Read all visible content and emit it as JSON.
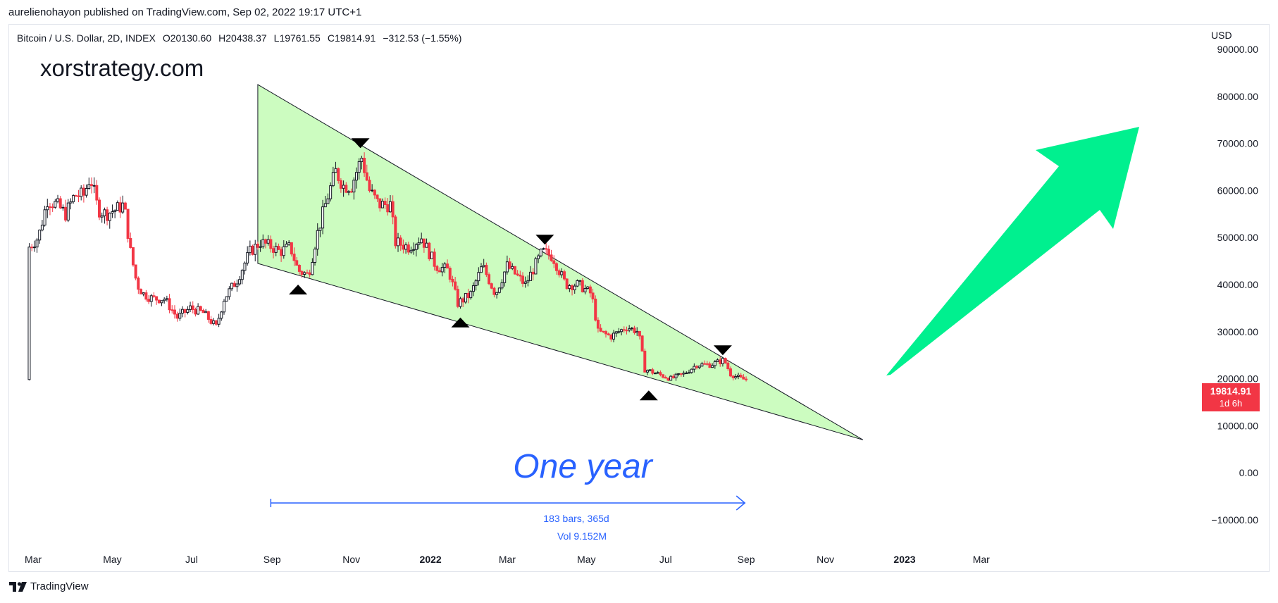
{
  "header": {
    "published_line": "aurelienohayon published on TradingView.com, Sep 02, 2022 19:17 UTC+1"
  },
  "symbol": {
    "name": "Bitcoin / U.S. Dollar, 2D, INDEX",
    "open": "O20130.60",
    "high": "H20438.37",
    "low": "L19761.55",
    "close": "C19814.91",
    "change": "−312.53 (−1.55%)"
  },
  "watermark": "xorstrategy.com",
  "price_axis": {
    "currency": "USD",
    "labels": [
      "90000.00",
      "80000.00",
      "70000.00",
      "60000.00",
      "50000.00",
      "40000.00",
      "30000.00",
      "20000.00",
      "10000.00",
      "0.00",
      "−10000.00"
    ]
  },
  "last_price": {
    "value": "19814.91",
    "countdown": "1d 6h",
    "color": "#f23645"
  },
  "annotations": {
    "title": "One year",
    "range_bars": "183 bars, 365d",
    "range_vol": "Vol 9.152M"
  },
  "footer": {
    "brand": "TradingView"
  },
  "colors": {
    "wedge_fill": "#ccfcc0",
    "arrow": "#00f08f",
    "up_candle": "#131722",
    "down_candle": "#f23645",
    "measure": "#2962ff"
  },
  "chart_data": {
    "type": "candlestick",
    "title": "Bitcoin / U.S. Dollar, 2D, INDEX",
    "xlabel": "",
    "ylabel": "USD",
    "ylim": [
      -10000,
      90000
    ],
    "x_ticks": [
      "Mar",
      "May",
      "Jul",
      "Sep",
      "Nov",
      "2022",
      "Mar",
      "May",
      "Jul",
      "Sep",
      "Nov",
      "2023",
      "Mar"
    ],
    "x_tick_dates": [
      "2021-03-01",
      "2021-05-01",
      "2021-07-01",
      "2021-09-01",
      "2021-11-01",
      "2022-01-01",
      "2022-03-01",
      "2022-05-01",
      "2022-07-01",
      "2022-09-01",
      "2022-11-01",
      "2023-01-01",
      "2023-03-01"
    ],
    "grid": false,
    "series": [
      {
        "name": "BTCUSD",
        "points": [
          [
            "2021-02-26",
            48000
          ],
          [
            "2021-03-05",
            50000
          ],
          [
            "2021-03-12",
            58000
          ],
          [
            "2021-03-19",
            57000
          ],
          [
            "2021-03-26",
            55000
          ],
          [
            "2021-04-02",
            59000
          ],
          [
            "2021-04-09",
            59000
          ],
          [
            "2021-04-14",
            63000
          ],
          [
            "2021-04-20",
            56000
          ],
          [
            "2021-04-26",
            55000
          ],
          [
            "2021-05-04",
            56000
          ],
          [
            "2021-05-10",
            57000
          ],
          [
            "2021-05-15",
            47000
          ],
          [
            "2021-05-20",
            40000
          ],
          [
            "2021-05-25",
            38000
          ],
          [
            "2021-06-01",
            37000
          ],
          [
            "2021-06-10",
            37000
          ],
          [
            "2021-06-20",
            33000
          ],
          [
            "2021-06-30",
            35000
          ],
          [
            "2021-07-10",
            34000
          ],
          [
            "2021-07-20",
            31000
          ],
          [
            "2021-07-26",
            37000
          ],
          [
            "2021-08-05",
            41000
          ],
          [
            "2021-08-15",
            47000
          ],
          [
            "2021-08-23",
            49000
          ],
          [
            "2021-09-01",
            48000
          ],
          [
            "2021-09-07",
            47000
          ],
          [
            "2021-09-15",
            48000
          ],
          [
            "2021-09-21",
            43000
          ],
          [
            "2021-09-29",
            42000
          ],
          [
            "2021-10-05",
            50000
          ],
          [
            "2021-10-13",
            58000
          ],
          [
            "2021-10-20",
            64000
          ],
          [
            "2021-10-26",
            61000
          ],
          [
            "2021-11-01",
            61000
          ],
          [
            "2021-11-09",
            67000
          ],
          [
            "2021-11-15",
            60000
          ],
          [
            "2021-11-22",
            57000
          ],
          [
            "2021-12-01",
            57000
          ],
          [
            "2021-12-05",
            49000
          ],
          [
            "2021-12-15",
            48000
          ],
          [
            "2021-12-25",
            50000
          ],
          [
            "2022-01-05",
            44000
          ],
          [
            "2022-01-15",
            43000
          ],
          [
            "2022-01-22",
            36000
          ],
          [
            "2022-02-01",
            38000
          ],
          [
            "2022-02-10",
            44000
          ],
          [
            "2022-02-20",
            38000
          ],
          [
            "2022-03-01",
            44000
          ],
          [
            "2022-03-15",
            40000
          ],
          [
            "2022-03-28",
            47000
          ],
          [
            "2022-04-05",
            46000
          ],
          [
            "2022-04-15",
            40000
          ],
          [
            "2022-04-25",
            40000
          ],
          [
            "2022-05-05",
            38000
          ],
          [
            "2022-05-10",
            30000
          ],
          [
            "2022-05-20",
            29000
          ],
          [
            "2022-06-01",
            31000
          ],
          [
            "2022-06-10",
            30000
          ],
          [
            "2022-06-15",
            22000
          ],
          [
            "2022-06-25",
            21000
          ],
          [
            "2022-07-05",
            20000
          ],
          [
            "2022-07-15",
            21000
          ],
          [
            "2022-07-25",
            23000
          ],
          [
            "2022-08-05",
            23000
          ],
          [
            "2022-08-15",
            24000
          ],
          [
            "2022-08-20",
            21000
          ],
          [
            "2022-08-28",
            20000
          ],
          [
            "2022-09-01",
            19814.91
          ]
        ]
      }
    ],
    "markers": {
      "top_arrows": [
        [
          "2021-11-08",
          69000
        ],
        [
          "2022-03-30",
          48500
        ],
        [
          "2022-08-14",
          25000
        ]
      ],
      "bottom_arrows": [
        [
          "2021-09-21",
          40000
        ],
        [
          "2022-01-24",
          33000
        ],
        [
          "2022-06-18",
          17500
        ]
      ]
    },
    "falling_wedge": {
      "upper": [
        [
          "2021-08-21",
          82500
        ],
        [
          "2022-11-30",
          7000
        ]
      ],
      "lower": [
        [
          "2021-08-21",
          44500
        ],
        [
          "2022-11-30",
          7000
        ]
      ]
    },
    "date_range_measure": {
      "start": "2021-08-31",
      "end": "2022-08-31",
      "y": 0,
      "label": "183 bars, 365d",
      "volume": "Vol 9.152M"
    }
  }
}
